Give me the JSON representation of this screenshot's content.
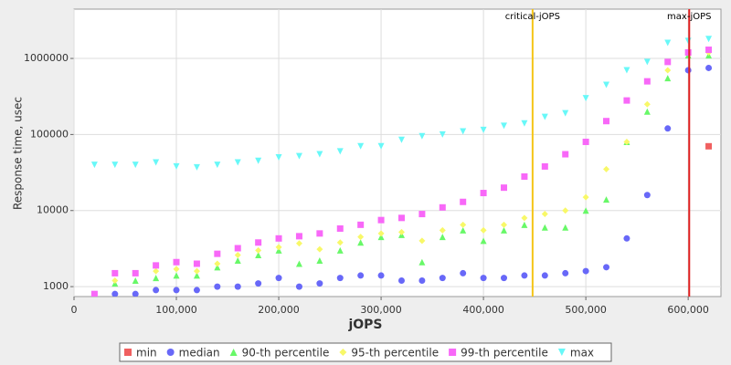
{
  "chart_data": {
    "type": "scatter",
    "x_label": "jOPS",
    "y_label": "Response time, usec",
    "log_y": true,
    "grid": true,
    "xlim": [
      0,
      632000
    ],
    "ylim": [
      740,
      4450000
    ],
    "xticks": [
      {
        "value": 0,
        "label": "0"
      },
      {
        "value": 100000,
        "label": "100,000"
      },
      {
        "value": 200000,
        "label": "200,000"
      },
      {
        "value": 300000,
        "label": "300,000"
      },
      {
        "value": 400000,
        "label": "400,000"
      },
      {
        "value": 500000,
        "label": "500,000"
      },
      {
        "value": 600000,
        "label": "600,000"
      }
    ],
    "yticks": [
      1000,
      10000,
      100000,
      1000000
    ],
    "vlines": [
      {
        "value": 448000,
        "label": "critical-jOPS",
        "color": "#f5c518"
      },
      {
        "value": 601000,
        "label": "max-jOPS",
        "color": "#e02020"
      }
    ],
    "x": [
      20000,
      40000,
      60000,
      80000,
      100000,
      120000,
      140000,
      160000,
      180000,
      200000,
      220000,
      240000,
      260000,
      280000,
      300000,
      320000,
      340000,
      360000,
      380000,
      400000,
      420000,
      440000,
      460000,
      480000,
      500000,
      520000,
      540000,
      560000,
      580000,
      600000,
      620000
    ],
    "series": [
      {
        "name": "min",
        "color": "#f06060",
        "marker": "square",
        "values": [
          null,
          null,
          null,
          null,
          null,
          null,
          null,
          null,
          null,
          null,
          null,
          null,
          null,
          null,
          null,
          null,
          null,
          null,
          null,
          null,
          null,
          null,
          null,
          null,
          null,
          null,
          null,
          null,
          null,
          null,
          70000
        ]
      },
      {
        "name": "median",
        "color": "#6868f8",
        "marker": "circle",
        "values": [
          null,
          800,
          800,
          900,
          900,
          900,
          1000,
          1000,
          1100,
          1300,
          1000,
          1100,
          1300,
          1400,
          1400,
          1200,
          1200,
          1300,
          1500,
          1300,
          1300,
          1400,
          1400,
          1500,
          1600,
          1800,
          4300,
          16000,
          120000,
          700000,
          750000
        ]
      },
      {
        "name": "90-th percentile",
        "color": "#68f868",
        "marker": "triangle",
        "values": [
          null,
          1100,
          1200,
          1300,
          1400,
          1400,
          1800,
          2200,
          2600,
          3000,
          2000,
          2200,
          3000,
          3800,
          4500,
          4800,
          2100,
          4500,
          5500,
          4000,
          5500,
          6500,
          6000,
          6000,
          10000,
          14000,
          80000,
          200000,
          550000,
          1100000,
          1100000
        ]
      },
      {
        "name": "95-th percentile",
        "color": "#f8f868",
        "marker": "diamond",
        "values": [
          800,
          1200,
          1500,
          1600,
          1700,
          1600,
          2000,
          2600,
          3000,
          3300,
          3700,
          3100,
          3800,
          4500,
          5000,
          5200,
          4000,
          5500,
          6500,
          5500,
          6500,
          8000,
          9000,
          10000,
          15000,
          35000,
          80000,
          250000,
          700000,
          1200000,
          1200000
        ]
      },
      {
        "name": "99-th percentile",
        "color": "#f868f8",
        "marker": "square",
        "values": [
          800,
          1500,
          1500,
          1900,
          2100,
          2000,
          2700,
          3200,
          3800,
          4300,
          4600,
          5000,
          5800,
          6500,
          7500,
          8000,
          9000,
          11000,
          13000,
          17000,
          20000,
          28000,
          38000,
          55000,
          80000,
          150000,
          280000,
          500000,
          900000,
          1200000,
          1300000
        ]
      },
      {
        "name": "max",
        "color": "#68f8f8",
        "marker": "down-triangle",
        "values": [
          40000,
          40000,
          40000,
          43000,
          38000,
          37000,
          40000,
          43000,
          45000,
          50000,
          52000,
          55000,
          60000,
          70000,
          70000,
          85000,
          95000,
          100000,
          110000,
          115000,
          130000,
          140000,
          170000,
          190000,
          300000,
          450000,
          700000,
          900000,
          1600000,
          1700000,
          1800000
        ]
      }
    ]
  }
}
